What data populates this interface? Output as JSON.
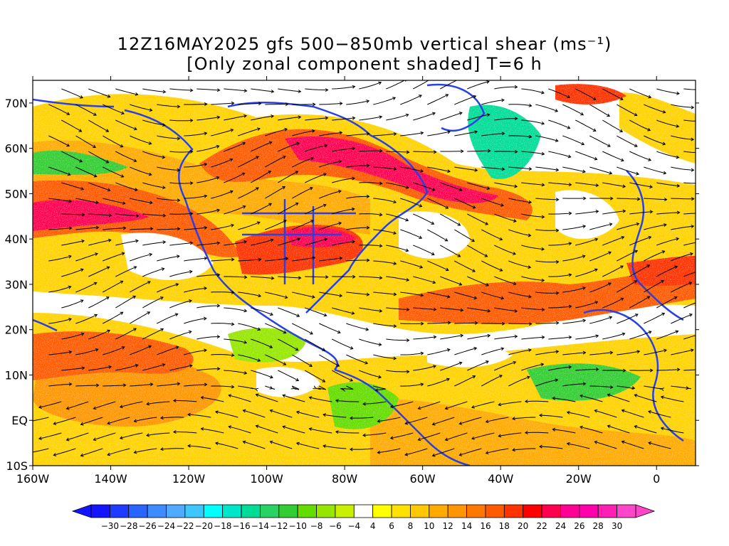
{
  "title_line1": "12Z16MAY2025 gfs 500−850mb vertical shear (ms⁻¹)",
  "title_line2": "[Only zonal component shaded] T=6 h",
  "axes": {
    "lat_labels": [
      "70N",
      "60N",
      "50N",
      "40N",
      "30N",
      "20N",
      "10N",
      "EQ",
      "10S"
    ],
    "lat_values": [
      70,
      60,
      50,
      40,
      30,
      20,
      10,
      0,
      -10
    ],
    "lon_labels": [
      "160W",
      "140W",
      "120W",
      "100W",
      "80W",
      "60W",
      "40W",
      "20W",
      "0"
    ],
    "lon_values": [
      -160,
      -140,
      -120,
      -100,
      -80,
      -60,
      -40,
      -20,
      0
    ],
    "lon_range": [
      -160,
      10
    ],
    "lat_range": [
      -10,
      75
    ]
  },
  "colorbar": {
    "labels": [
      "−30",
      "−28",
      "−26",
      "−24",
      "−22",
      "−20",
      "−18",
      "−16",
      "−14",
      "−12",
      "−10",
      "−8",
      "−6",
      "−4",
      "4",
      "6",
      "8",
      "10",
      "12",
      "14",
      "16",
      "18",
      "20",
      "22",
      "24",
      "26",
      "28",
      "30"
    ],
    "colors": [
      "#1414ff",
      "#1e3cff",
      "#2864ff",
      "#3c8cff",
      "#50aaff",
      "#3cc8ff",
      "#00ffff",
      "#00e6c8",
      "#00dc96",
      "#28d264",
      "#32cd32",
      "#64dc00",
      "#96e600",
      "#c8f000",
      "#ffffff",
      "#ffff00",
      "#ffe100",
      "#ffc800",
      "#ffaa00",
      "#ff9600",
      "#ff7800",
      "#ff5a00",
      "#ff3200",
      "#ff0000",
      "#ff0050",
      "#ff0096",
      "#ff00aa",
      "#ff1eb4",
      "#ff46c8"
    ],
    "under_color": "#1414ff",
    "over_color": "#ff46c8"
  }
}
